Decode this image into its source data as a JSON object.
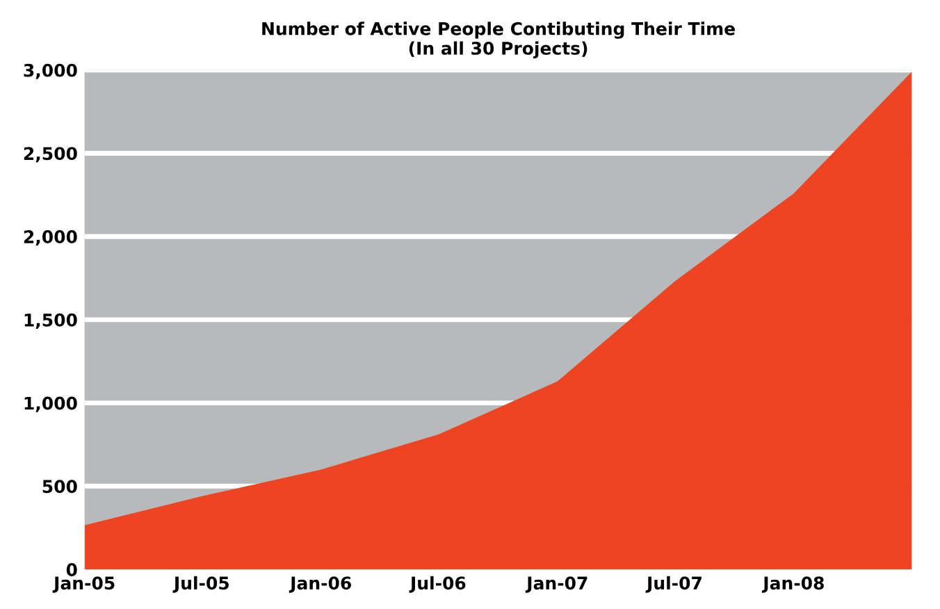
{
  "chart_data": {
    "type": "area",
    "title": "Number of Active People Contibuting Their Time\n(In all 30 Projects)",
    "x": [
      "2005-01",
      "2005-07",
      "2006-01",
      "2006-07",
      "2007-01",
      "2007-07",
      "2008-01",
      "2008-07"
    ],
    "series": [
      {
        "color": "#ee4422",
        "values": [
          265,
          440,
          600,
          810,
          1130,
          1730,
          2260,
          2990
        ]
      }
    ],
    "xlim": [
      "2005-01",
      "2008-07"
    ],
    "xticks": [
      {
        "value": "2005-01",
        "label": "Jan-05"
      },
      {
        "value": "2005-07",
        "label": "Jul-05"
      },
      {
        "value": "2006-01",
        "label": "Jan-06"
      },
      {
        "value": "2006-07",
        "label": "Jul-06"
      },
      {
        "value": "2007-01",
        "label": "Jan-07"
      },
      {
        "value": "2007-07",
        "label": "Jul-07"
      },
      {
        "value": "2008-01",
        "label": "Jan-08"
      }
    ],
    "ylim": [
      0,
      3000
    ],
    "yticks": [
      {
        "value": 0,
        "label": "0"
      },
      {
        "value": 500,
        "label": "500"
      },
      {
        "value": 1000,
        "label": "1,000"
      },
      {
        "value": 1500,
        "label": "1,500"
      },
      {
        "value": 2000,
        "label": "2,000"
      },
      {
        "value": 2500,
        "label": "2,500"
      },
      {
        "value": 3000,
        "label": "3,000"
      }
    ],
    "grid": "y"
  }
}
